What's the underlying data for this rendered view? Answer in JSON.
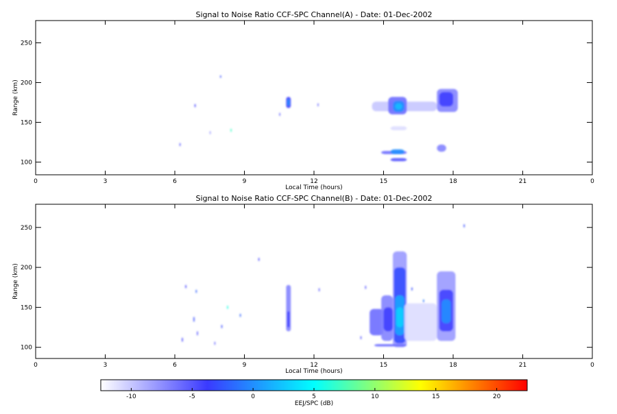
{
  "chart_data": [
    {
      "type": "heatmap",
      "title": "Signal to Noise Ratio CCF-SPC Channel(A) - Date: 01-Dec-2002",
      "xlabel": "Local Time (hours)",
      "ylabel": "Range (km)",
      "xlim": [
        0,
        24
      ],
      "xticks": [
        0,
        3,
        6,
        9,
        12,
        15,
        18,
        21,
        {
          "value": 24,
          "label": "0"
        }
      ],
      "ylim": [
        84,
        278
      ],
      "yticks": [
        100,
        150,
        200,
        250
      ],
      "t_start": [
        10.8,
        10.85,
        14.5,
        15.2,
        15.4,
        15.5,
        15.3,
        17.3,
        17.4,
        14.9,
        15.3,
        15.3,
        17.3,
        6.85,
        7.95,
        10.5,
        8.4,
        12.15,
        6.2,
        7.5
      ],
      "t_end": [
        11.0,
        10.95,
        17.3,
        16.0,
        15.9,
        15.8,
        16.0,
        18.2,
        18.0,
        16.0,
        15.9,
        16.0,
        17.7,
        6.9,
        8.0,
        10.55,
        8.45,
        12.2,
        6.25,
        7.55
      ],
      "range_low": [
        168,
        171,
        164,
        160,
        163,
        166,
        140,
        163,
        170,
        110,
        110,
        101,
        113,
        169,
        206,
        158,
        138,
        170,
        120,
        135
      ],
      "range_high": [
        182,
        179,
        176,
        182,
        177,
        174,
        145,
        192,
        188,
        114,
        116,
        105,
        122,
        173,
        209,
        162,
        142,
        174,
        124,
        139
      ],
      "snr": [
        -4,
        0,
        -10,
        -6,
        0,
        2,
        -11,
        -7,
        -4,
        -6,
        0,
        -5,
        -7,
        -4,
        -3,
        -6,
        7,
        -6,
        -5,
        -8
      ]
    },
    {
      "type": "heatmap",
      "title": "Signal to Noise Ratio CCF-SPC Channel(B) - Date: 01-Dec-2002",
      "xlabel": "Local Time (hours)",
      "ylabel": "Range (km)",
      "xlim": [
        0,
        24
      ],
      "xticks": [
        0,
        3,
        6,
        9,
        12,
        15,
        18,
        21,
        {
          "value": 24,
          "label": "0"
        }
      ],
      "ylim": [
        86,
        279
      ],
      "yticks": [
        100,
        150,
        200,
        250
      ],
      "t_start": [
        10.8,
        10.85,
        14.4,
        14.9,
        15.0,
        15.4,
        15.45,
        15.5,
        15.55,
        15.9,
        17.3,
        17.4,
        17.5,
        14.6,
        6.45,
        6.9,
        6.8,
        8.25,
        8.8,
        9.6,
        12.2,
        14.0,
        14.2,
        16.2,
        16.7,
        18.45,
        6.3,
        7.7,
        6.95,
        8.0
      ],
      "t_end": [
        11.0,
        10.95,
        15.0,
        15.4,
        15.4,
        16.0,
        15.95,
        15.9,
        15.85,
        17.3,
        18.1,
        18.0,
        17.9,
        16.0,
        6.5,
        6.95,
        6.85,
        8.3,
        8.85,
        9.65,
        12.25,
        14.05,
        14.25,
        16.25,
        16.75,
        18.5,
        6.35,
        7.75,
        7.0,
        8.05
      ],
      "range_low": [
        120,
        125,
        115,
        108,
        120,
        100,
        105,
        115,
        125,
        108,
        108,
        120,
        130,
        101,
        174,
        168,
        132,
        148,
        138,
        208,
        170,
        110,
        173,
        171,
        156,
        250,
        107,
        103,
        115,
        124
      ],
      "range_high": [
        178,
        145,
        148,
        165,
        150,
        220,
        200,
        165,
        150,
        155,
        195,
        172,
        160,
        104,
        178,
        172,
        138,
        152,
        142,
        212,
        174,
        114,
        177,
        175,
        160,
        254,
        112,
        107,
        120,
        128
      ],
      "snr": [
        -7,
        -4,
        -6,
        -7,
        -4,
        -8,
        -3,
        1,
        3,
        -11,
        -8,
        -4,
        0,
        -6,
        -4,
        -2,
        -3,
        6,
        -2,
        -4,
        -5,
        -5,
        -5,
        -3,
        -1,
        -3,
        -4,
        -6,
        -5,
        -3
      ]
    },
    {
      "type": "colorbar",
      "label": "EEJ/SPC (dB)",
      "clim": [
        -12.5,
        22.5
      ],
      "ticks": [
        -10,
        -5,
        0,
        5,
        10,
        15,
        20
      ],
      "colormap": [
        "#ffffff",
        "#3a3aff",
        "#00ffff",
        "#ffff00",
        "#ff0000"
      ]
    }
  ]
}
